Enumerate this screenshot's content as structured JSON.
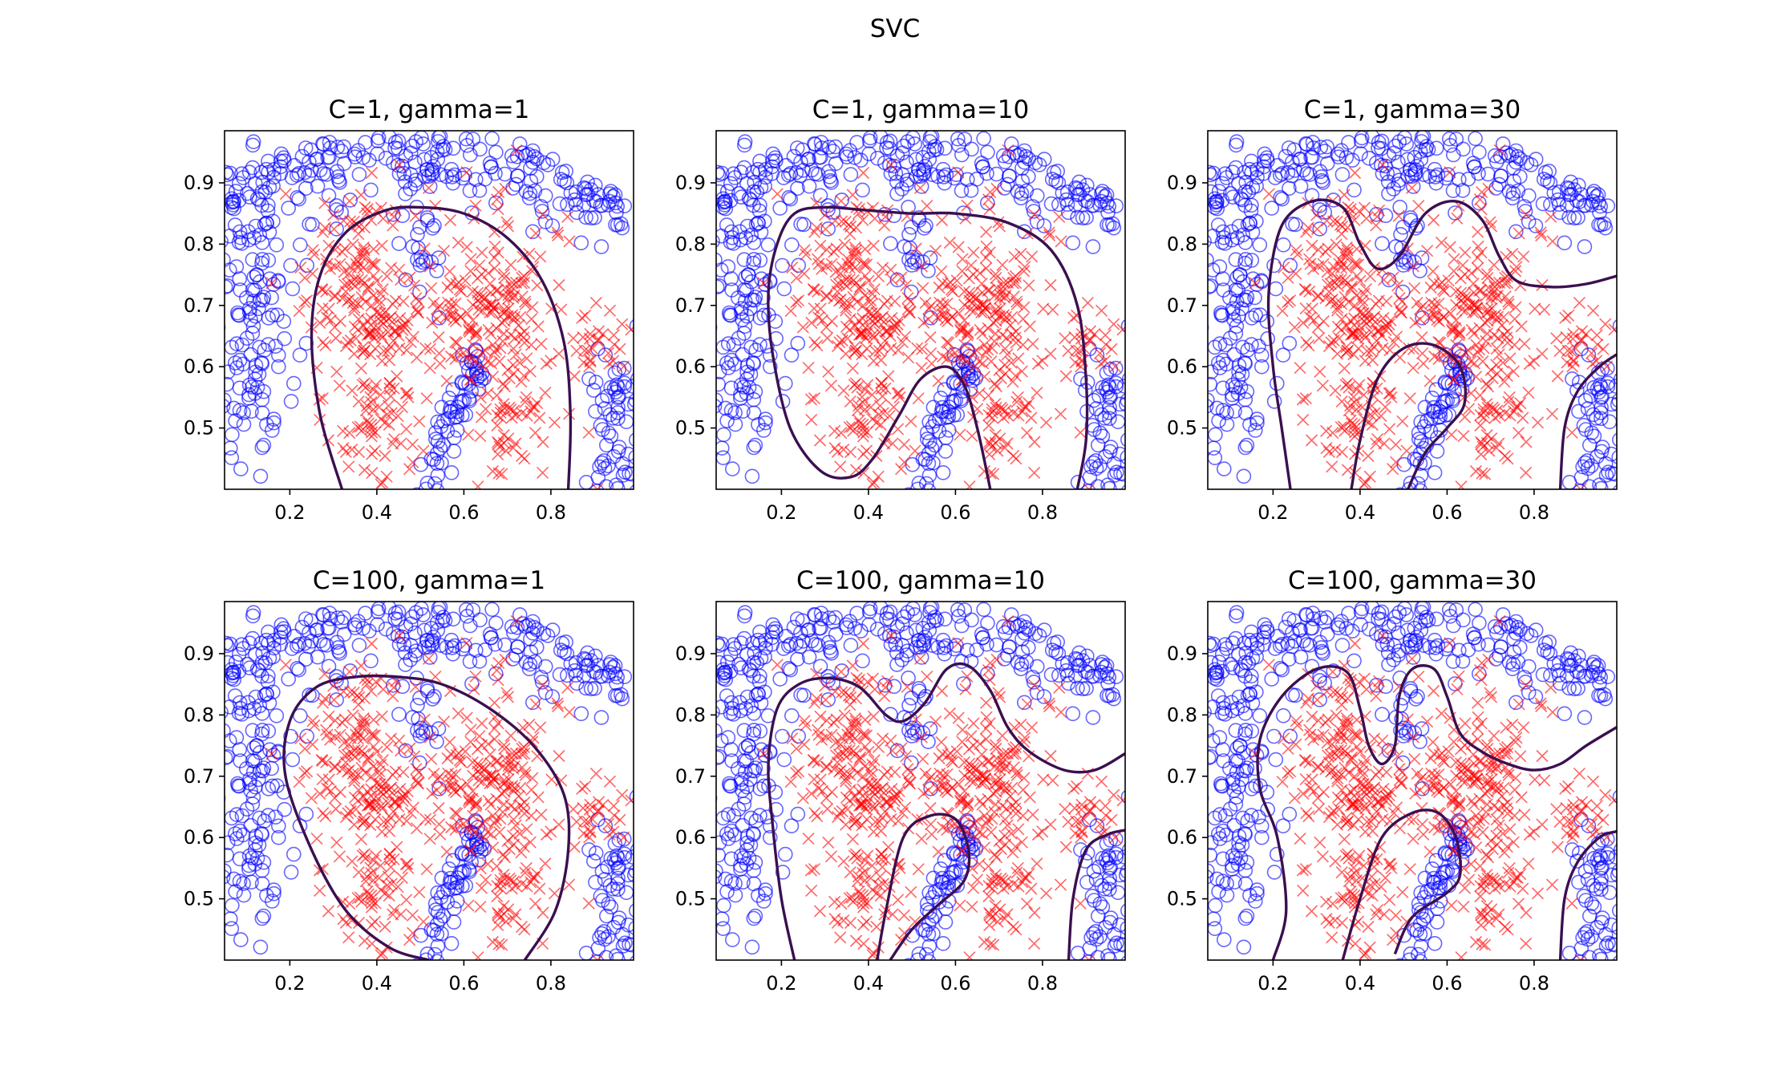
{
  "figure": {
    "title": "SVC"
  },
  "chart_data": [
    {
      "type": "scatter",
      "title": "C=1, gamma=1",
      "xlabel": "",
      "ylabel": "",
      "xlim": [
        0.05,
        0.99
      ],
      "ylim": [
        0.4,
        0.985
      ],
      "xticks": [
        "0.2",
        "0.4",
        "0.6",
        "0.8"
      ],
      "yticks": [
        "0.5",
        "0.6",
        "0.7",
        "0.8",
        "0.9"
      ],
      "series": [
        {
          "marker": "circle",
          "color": "#0000ff"
        },
        {
          "marker": "x",
          "color": "#ff0000"
        }
      ],
      "boundary_color": "#3b0f50",
      "boundaries": [
        [
          [
            0.32,
            0.4
          ],
          [
            0.27,
            0.52
          ],
          [
            0.25,
            0.65
          ],
          [
            0.27,
            0.75
          ],
          [
            0.33,
            0.82
          ],
          [
            0.42,
            0.855
          ],
          [
            0.5,
            0.86
          ],
          [
            0.6,
            0.85
          ],
          [
            0.7,
            0.81
          ],
          [
            0.78,
            0.74
          ],
          [
            0.83,
            0.64
          ],
          [
            0.845,
            0.52
          ],
          [
            0.84,
            0.4
          ]
        ]
      ]
    },
    {
      "type": "scatter",
      "title": "C=1, gamma=10",
      "xlabel": "",
      "ylabel": "",
      "xlim": [
        0.05,
        0.99
      ],
      "ylim": [
        0.4,
        0.985
      ],
      "xticks": [
        "0.2",
        "0.4",
        "0.6",
        "0.8"
      ],
      "yticks": [
        "0.5",
        "0.6",
        "0.7",
        "0.8",
        "0.9"
      ],
      "series": [
        {
          "marker": "circle",
          "color": "#0000ff"
        },
        {
          "marker": "x",
          "color": "#ff0000"
        }
      ],
      "boundary_color": "#3b0f50",
      "boundaries": [
        [
          [
            0.68,
            0.4
          ],
          [
            0.65,
            0.5
          ],
          [
            0.62,
            0.57
          ],
          [
            0.58,
            0.6
          ],
          [
            0.52,
            0.58
          ],
          [
            0.47,
            0.52
          ],
          [
            0.41,
            0.45
          ],
          [
            0.36,
            0.42
          ],
          [
            0.29,
            0.43
          ],
          [
            0.22,
            0.5
          ],
          [
            0.18,
            0.62
          ],
          [
            0.17,
            0.72
          ],
          [
            0.19,
            0.8
          ],
          [
            0.23,
            0.85
          ],
          [
            0.3,
            0.86
          ],
          [
            0.4,
            0.855
          ],
          [
            0.5,
            0.85
          ],
          [
            0.6,
            0.85
          ],
          [
            0.72,
            0.835
          ],
          [
            0.82,
            0.79
          ],
          [
            0.88,
            0.7
          ],
          [
            0.9,
            0.58
          ],
          [
            0.9,
            0.48
          ],
          [
            0.88,
            0.4
          ]
        ]
      ]
    },
    {
      "type": "scatter",
      "title": "C=1, gamma=30",
      "xlabel": "",
      "ylabel": "",
      "xlim": [
        0.05,
        0.99
      ],
      "ylim": [
        0.4,
        0.985
      ],
      "xticks": [
        "0.2",
        "0.4",
        "0.6",
        "0.8"
      ],
      "yticks": [
        "0.5",
        "0.6",
        "0.7",
        "0.8",
        "0.9"
      ],
      "series": [
        {
          "marker": "circle",
          "color": "#0000ff"
        },
        {
          "marker": "x",
          "color": "#ff0000"
        }
      ],
      "boundary_color": "#3b0f50",
      "boundaries": [
        [
          [
            0.24,
            0.4
          ],
          [
            0.22,
            0.5
          ],
          [
            0.2,
            0.6
          ],
          [
            0.19,
            0.72
          ],
          [
            0.22,
            0.83
          ],
          [
            0.29,
            0.87
          ],
          [
            0.36,
            0.86
          ],
          [
            0.4,
            0.8
          ],
          [
            0.44,
            0.76
          ],
          [
            0.49,
            0.78
          ],
          [
            0.55,
            0.85
          ],
          [
            0.62,
            0.87
          ],
          [
            0.68,
            0.84
          ],
          [
            0.72,
            0.78
          ],
          [
            0.76,
            0.74
          ],
          [
            0.84,
            0.73
          ],
          [
            0.92,
            0.735
          ],
          [
            0.99,
            0.748
          ]
        ],
        [
          [
            0.38,
            0.4
          ],
          [
            0.4,
            0.48
          ],
          [
            0.44,
            0.58
          ],
          [
            0.5,
            0.63
          ],
          [
            0.57,
            0.635
          ],
          [
            0.63,
            0.6
          ],
          [
            0.64,
            0.54
          ],
          [
            0.6,
            0.5
          ],
          [
            0.55,
            0.46
          ],
          [
            0.51,
            0.4
          ]
        ],
        [
          [
            0.86,
            0.4
          ],
          [
            0.87,
            0.5
          ],
          [
            0.9,
            0.56
          ],
          [
            0.95,
            0.6
          ],
          [
            0.99,
            0.62
          ]
        ]
      ]
    },
    {
      "type": "scatter",
      "title": "C=100, gamma=1",
      "xlabel": "",
      "ylabel": "",
      "xlim": [
        0.05,
        0.99
      ],
      "ylim": [
        0.4,
        0.985
      ],
      "xticks": [
        "0.2",
        "0.4",
        "0.6",
        "0.8"
      ],
      "yticks": [
        "0.5",
        "0.6",
        "0.7",
        "0.8",
        "0.9"
      ],
      "series": [
        {
          "marker": "circle",
          "color": "#0000ff"
        },
        {
          "marker": "x",
          "color": "#ff0000"
        }
      ],
      "boundary_color": "#3b0f50",
      "boundaries": [
        [
          [
            0.52,
            0.4
          ],
          [
            0.43,
            0.42
          ],
          [
            0.33,
            0.48
          ],
          [
            0.25,
            0.58
          ],
          [
            0.19,
            0.7
          ],
          [
            0.2,
            0.79
          ],
          [
            0.26,
            0.845
          ],
          [
            0.35,
            0.862
          ],
          [
            0.45,
            0.862
          ],
          [
            0.55,
            0.85
          ],
          [
            0.66,
            0.81
          ],
          [
            0.76,
            0.75
          ],
          [
            0.83,
            0.67
          ],
          [
            0.84,
            0.58
          ],
          [
            0.81,
            0.48
          ],
          [
            0.74,
            0.4
          ]
        ]
      ]
    },
    {
      "type": "scatter",
      "title": "C=100, gamma=10",
      "xlabel": "",
      "ylabel": "",
      "xlim": [
        0.05,
        0.99
      ],
      "ylim": [
        0.4,
        0.985
      ],
      "xticks": [
        "0.2",
        "0.4",
        "0.6",
        "0.8"
      ],
      "yticks": [
        "0.5",
        "0.6",
        "0.7",
        "0.8",
        "0.9"
      ],
      "series": [
        {
          "marker": "circle",
          "color": "#0000ff"
        },
        {
          "marker": "x",
          "color": "#ff0000"
        }
      ],
      "boundary_color": "#3b0f50",
      "boundaries": [
        [
          [
            0.23,
            0.4
          ],
          [
            0.2,
            0.5
          ],
          [
            0.18,
            0.62
          ],
          [
            0.17,
            0.72
          ],
          [
            0.19,
            0.81
          ],
          [
            0.24,
            0.85
          ],
          [
            0.31,
            0.86
          ],
          [
            0.38,
            0.845
          ],
          [
            0.44,
            0.8
          ],
          [
            0.48,
            0.79
          ],
          [
            0.53,
            0.82
          ],
          [
            0.58,
            0.875
          ],
          [
            0.63,
            0.88
          ],
          [
            0.68,
            0.84
          ],
          [
            0.72,
            0.78
          ],
          [
            0.77,
            0.74
          ],
          [
            0.85,
            0.71
          ],
          [
            0.92,
            0.71
          ],
          [
            0.99,
            0.737
          ]
        ],
        [
          [
            0.42,
            0.4
          ],
          [
            0.44,
            0.48
          ],
          [
            0.48,
            0.6
          ],
          [
            0.54,
            0.635
          ],
          [
            0.6,
            0.63
          ],
          [
            0.63,
            0.58
          ],
          [
            0.62,
            0.53
          ],
          [
            0.56,
            0.49
          ],
          [
            0.5,
            0.45
          ],
          [
            0.45,
            0.4
          ]
        ],
        [
          [
            0.86,
            0.4
          ],
          [
            0.87,
            0.5
          ],
          [
            0.9,
            0.58
          ],
          [
            0.95,
            0.605
          ],
          [
            0.99,
            0.612
          ]
        ]
      ]
    },
    {
      "type": "scatter",
      "title": "C=100, gamma=30",
      "xlabel": "",
      "ylabel": "",
      "xlim": [
        0.05,
        0.99
      ],
      "ylim": [
        0.4,
        0.985
      ],
      "xticks": [
        "0.2",
        "0.4",
        "0.6",
        "0.8"
      ],
      "yticks": [
        "0.5",
        "0.6",
        "0.7",
        "0.8",
        "0.9"
      ],
      "series": [
        {
          "marker": "circle",
          "color": "#0000ff"
        },
        {
          "marker": "x",
          "color": "#ff0000"
        }
      ],
      "boundary_color": "#3b0f50",
      "boundaries": [
        [
          [
            0.2,
            0.4
          ],
          [
            0.23,
            0.48
          ],
          [
            0.21,
            0.6
          ],
          [
            0.17,
            0.68
          ],
          [
            0.17,
            0.76
          ],
          [
            0.22,
            0.83
          ],
          [
            0.3,
            0.875
          ],
          [
            0.37,
            0.87
          ],
          [
            0.4,
            0.81
          ],
          [
            0.42,
            0.75
          ],
          [
            0.45,
            0.72
          ],
          [
            0.48,
            0.75
          ],
          [
            0.49,
            0.83
          ],
          [
            0.52,
            0.875
          ],
          [
            0.57,
            0.875
          ],
          [
            0.6,
            0.83
          ],
          [
            0.63,
            0.77
          ],
          [
            0.68,
            0.74
          ],
          [
            0.74,
            0.72
          ],
          [
            0.8,
            0.71
          ],
          [
            0.86,
            0.72
          ],
          [
            0.92,
            0.75
          ],
          [
            0.99,
            0.78
          ]
        ],
        [
          [
            0.36,
            0.4
          ],
          [
            0.4,
            0.5
          ],
          [
            0.45,
            0.6
          ],
          [
            0.52,
            0.64
          ],
          [
            0.58,
            0.64
          ],
          [
            0.62,
            0.6
          ],
          [
            0.63,
            0.54
          ],
          [
            0.6,
            0.51
          ],
          [
            0.52,
            0.47
          ],
          [
            0.48,
            0.41
          ]
        ],
        [
          [
            0.86,
            0.4
          ],
          [
            0.87,
            0.5
          ],
          [
            0.9,
            0.56
          ],
          [
            0.95,
            0.6
          ],
          [
            0.99,
            0.61
          ]
        ]
      ]
    }
  ]
}
